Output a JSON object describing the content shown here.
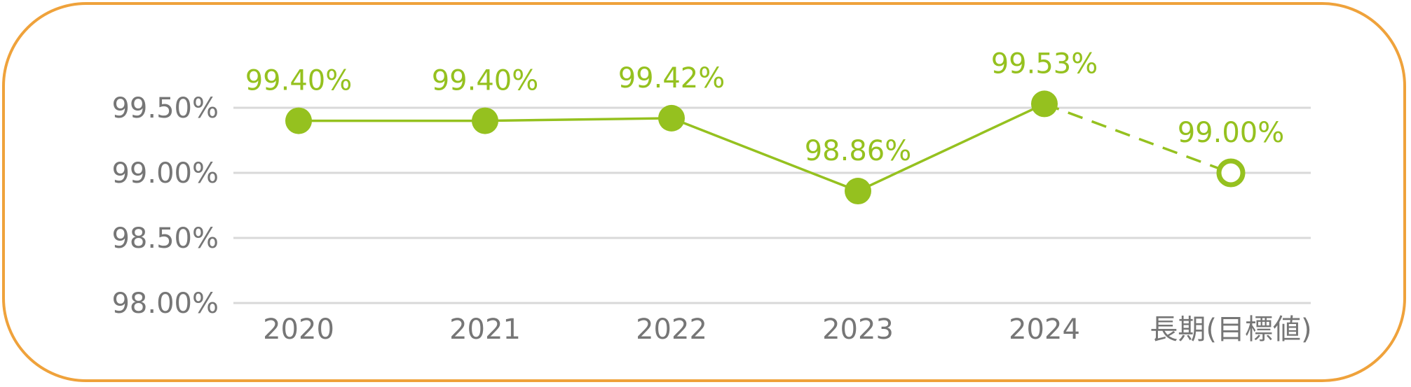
{
  "chart_data": {
    "type": "line",
    "categories": [
      "2020",
      "2021",
      "2022",
      "2023",
      "2024",
      "長期(目標値)"
    ],
    "values": [
      99.4,
      99.4,
      99.42,
      98.86,
      99.53,
      99.0
    ],
    "value_labels": [
      "99.40%",
      "99.40%",
      "99.42%",
      "98.86%",
      "99.53%",
      "99.00%"
    ],
    "yticks": [
      {
        "value": 98.0,
        "label": "98.00%"
      },
      {
        "value": 98.5,
        "label": "98.50%"
      },
      {
        "value": 99.0,
        "label": "99.00%"
      },
      {
        "value": 99.5,
        "label": "99.50%"
      }
    ],
    "ylim": [
      98.0,
      99.5
    ],
    "grid": true,
    "target_index": 5,
    "title": "",
    "xlabel": "",
    "ylabel": "",
    "colors": {
      "series": "#95C11F",
      "grid": "#D9D9D9",
      "tick_text": "#767676",
      "border": "#EFA23B"
    }
  }
}
